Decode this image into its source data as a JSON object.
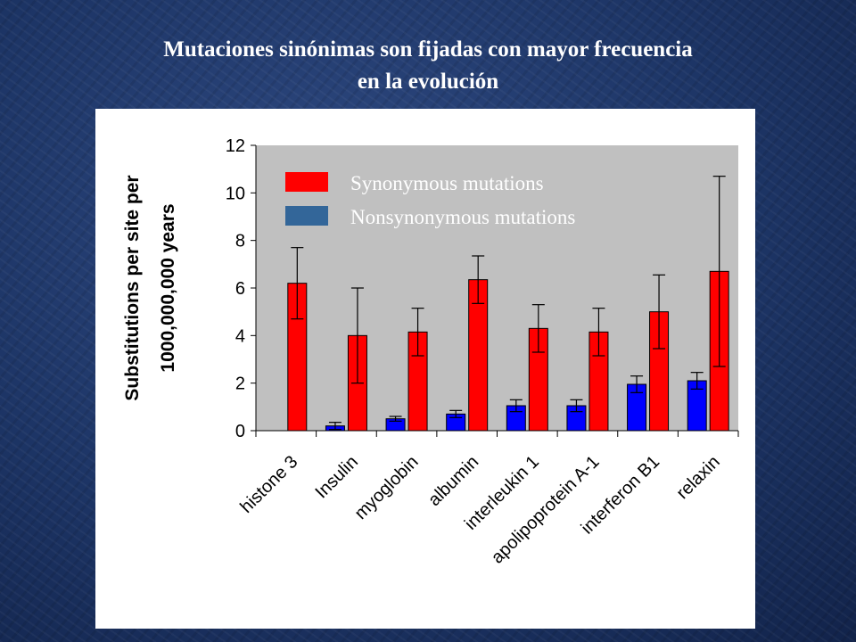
{
  "title_lines": [
    "Mutaciones sinónimas son fijadas con mayor frecuencia",
    "en la evolución"
  ],
  "chart_data": {
    "type": "bar",
    "ylabel_lines": [
      "Substitutions per site per",
      "1000,000,000 years"
    ],
    "ylim": [
      0,
      12
    ],
    "yticks": [
      0,
      2,
      4,
      6,
      8,
      10,
      12
    ],
    "grid": false,
    "legend_position": "top-left",
    "categories": [
      "histone 3",
      "Insulin",
      "myoglobin",
      "albumin",
      "interleukin 1",
      "apolipoprotein A-1",
      "interferon B1",
      "relaxin"
    ],
    "series": [
      {
        "name": "Nonsynonymous mutations",
        "color": "#0000ff",
        "legend_color": "#336699",
        "values": [
          0.0,
          0.2,
          0.5,
          0.7,
          1.05,
          1.05,
          1.95,
          2.1
        ],
        "error": [
          0,
          0.15,
          0.1,
          0.15,
          0.25,
          0.25,
          0.35,
          0.35
        ]
      },
      {
        "name": "Synonymous mutations",
        "color": "#ff0000",
        "legend_color": "#ff0000",
        "values": [
          6.2,
          4.0,
          4.15,
          6.35,
          4.3,
          4.15,
          5.0,
          6.7
        ],
        "error": [
          1.5,
          2.0,
          1.0,
          1.0,
          1.0,
          1.0,
          1.55,
          4.0
        ]
      }
    ],
    "plot_background": "#c0c0c0"
  }
}
